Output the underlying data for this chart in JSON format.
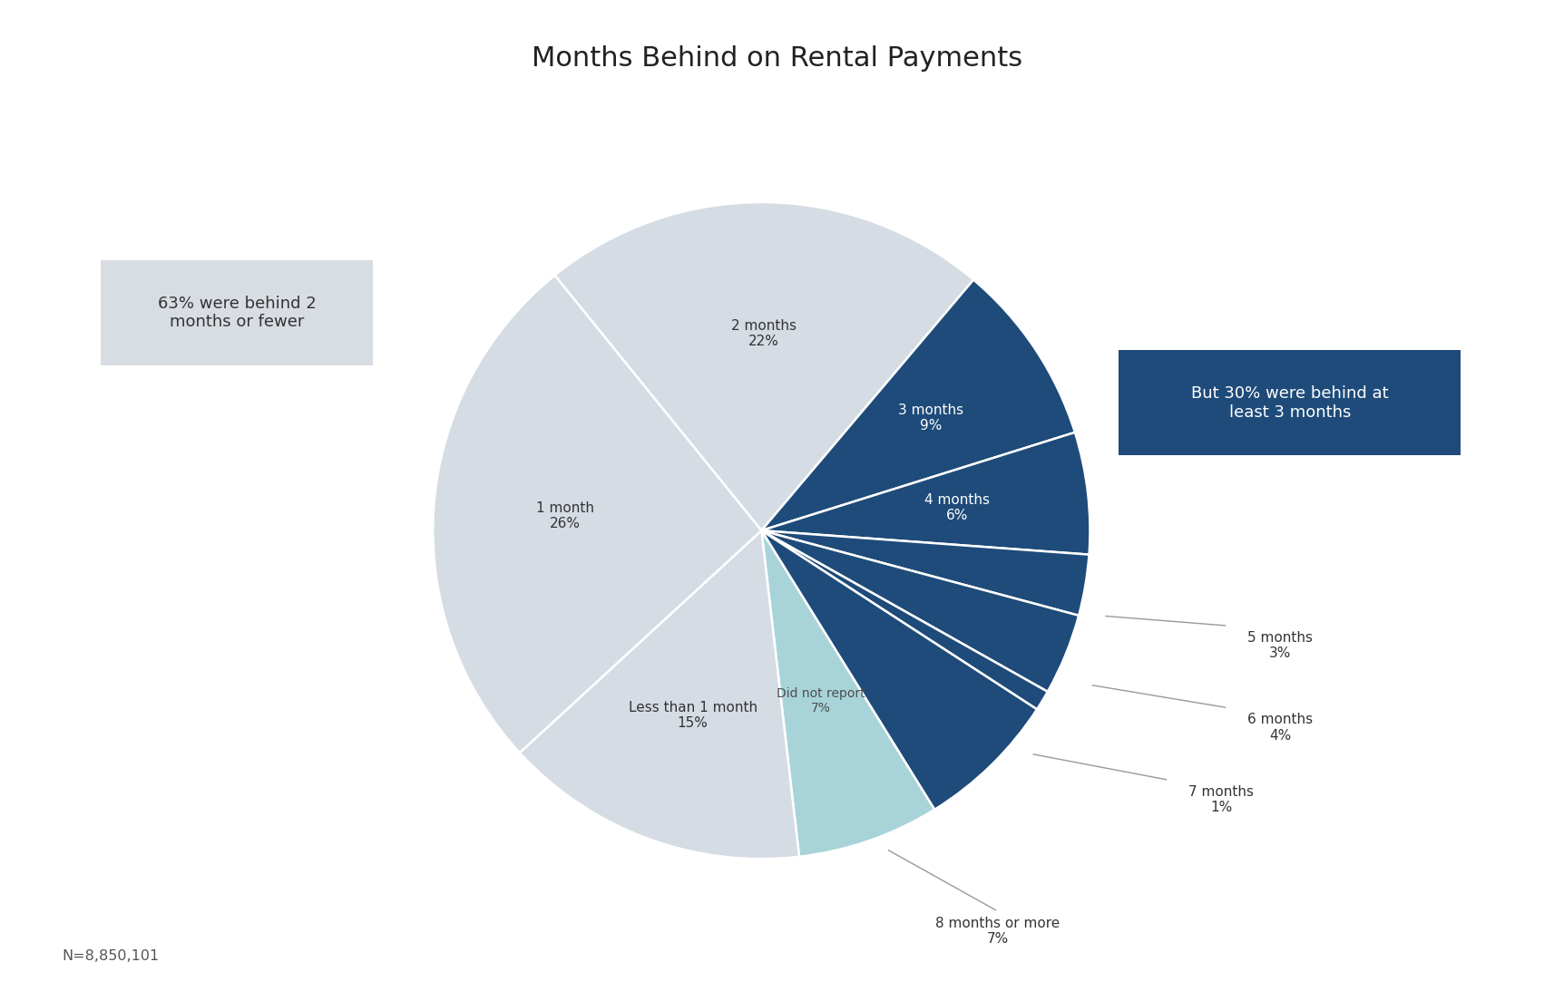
{
  "title": "Months Behind on Rental Payments",
  "slices": [
    {
      "label": "2 months\n22%",
      "value": 22,
      "color": "#d5dce4",
      "text_color": "#333333"
    },
    {
      "label": "3 months\n9%",
      "value": 9,
      "color": "#1e4b7a",
      "text_color": "#ffffff"
    },
    {
      "label": "4 months\n6%",
      "value": 6,
      "color": "#1e4b7a",
      "text_color": "#ffffff"
    },
    {
      "label": "5 months\n3%",
      "value": 3,
      "color": "#1e4b7a",
      "text_color": "#333333"
    },
    {
      "label": "6 months\n4%",
      "value": 4,
      "color": "#1e4b7a",
      "text_color": "#333333"
    },
    {
      "label": "7 months\n1%",
      "value": 1,
      "color": "#1e4b7a",
      "text_color": "#333333"
    },
    {
      "label": "8 months or more\n7%",
      "value": 7,
      "color": "#1e4b7a",
      "text_color": "#333333"
    },
    {
      "label": "Did not report\n7%",
      "value": 7,
      "color": "#a8d4d9",
      "text_color": "#4d4d4d"
    },
    {
      "label": "Less than 1 month\n15%",
      "value": 15,
      "color": "#d5dce4",
      "text_color": "#333333"
    },
    {
      "label": "1 month\n26%",
      "value": 26,
      "color": "#d5dce4",
      "text_color": "#333333"
    }
  ],
  "annotation_left": "63% were behind 2\nmonths or fewer",
  "annotation_right": "But 30% were behind at\nleast 3 months",
  "annotation_left_bg": "#d8dde3",
  "annotation_right_bg": "#1e4b7a",
  "annotation_right_text_color": "#ffffff",
  "annotation_left_text_color": "#333333",
  "n_label": "N=8,850,101",
  "background_color": "#ffffff",
  "title_fontsize": 22,
  "wedge_linewidth": 1.8,
  "wedge_linecolor": "#ffffff",
  "startangle": 129
}
